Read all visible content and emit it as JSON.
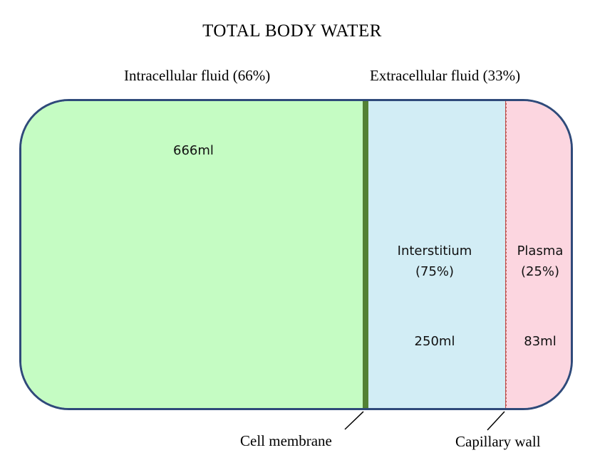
{
  "title": "TOTAL BODY WATER",
  "compartments": {
    "intracellular": {
      "label": "Intracellular fluid (66%)",
      "volume": "666ml",
      "color": "#c5fcc3"
    },
    "extracellular": {
      "label": "Extracellular fluid (33%)"
    },
    "interstitium": {
      "name": "Interstitium",
      "percent": "(75%)",
      "volume": "250ml",
      "color": "#d2edf5"
    },
    "plasma": {
      "name": "Plasma",
      "percent": "(25%)",
      "volume": "83ml",
      "color": "#fcd6e0"
    }
  },
  "boundaries": {
    "cell_membrane": {
      "label": "Cell membrane",
      "color": "#538135"
    },
    "capillary_wall": {
      "label": "Capillary wall",
      "color": "#c0504d"
    }
  },
  "outline_color": "#2f4a7a"
}
